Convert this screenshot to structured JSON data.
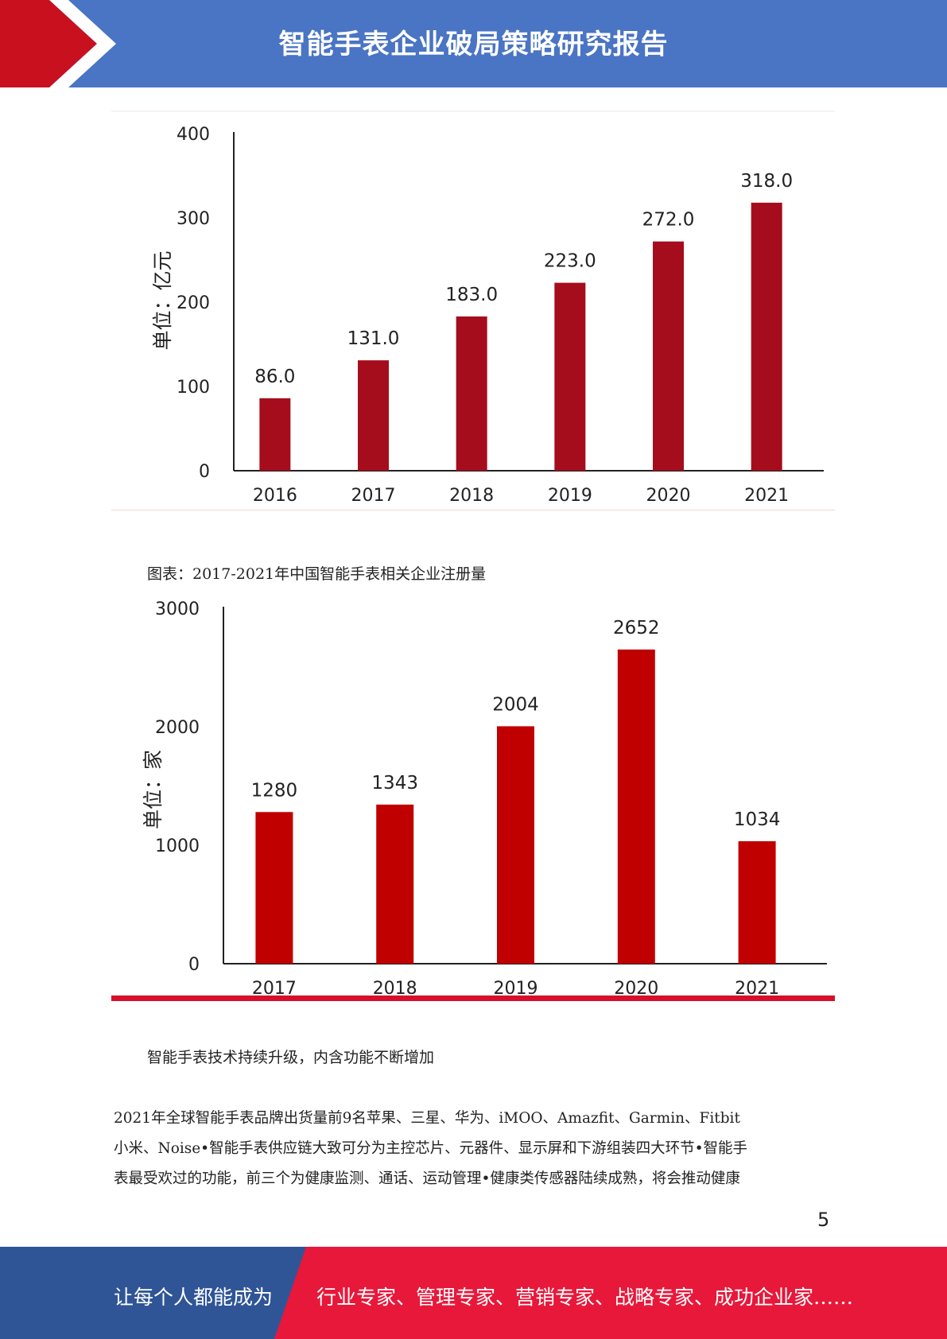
{
  "header": {
    "title": "智能手表企业破局策略研究报告",
    "colors": {
      "band": "#4a74c4",
      "accent": "#c8101e"
    }
  },
  "chart_data": [
    {
      "type": "bar",
      "categories": [
        "2016",
        "2017",
        "2018",
        "2019",
        "2020",
        "2021"
      ],
      "values": [
        86.0,
        131.0,
        183.0,
        223.0,
        272.0,
        318.0
      ],
      "data_labels": [
        "86.0",
        "131.0",
        "183.0",
        "223.0",
        "272.0",
        "318.0"
      ],
      "title": "",
      "xlabel": "",
      "ylabel": "单位：亿元",
      "ylim": [
        0,
        400
      ],
      "yticks": [
        "0",
        "100",
        "200",
        "300",
        "400"
      ],
      "grid": false,
      "color": "#a50d1c"
    },
    {
      "type": "bar",
      "categories": [
        "2017",
        "2018",
        "2019",
        "2020",
        "2021"
      ],
      "values": [
        1280,
        1343,
        2004,
        2652,
        1034
      ],
      "data_labels": [
        "1280",
        "1343",
        "2004",
        "2652",
        "1034"
      ],
      "title": "",
      "xlabel": "",
      "ylabel": "单位：家",
      "ylim": [
        0,
        3000
      ],
      "yticks": [
        "0",
        "1000",
        "2000",
        "3000"
      ],
      "grid": false,
      "color": "#c00000"
    }
  ],
  "body": {
    "caption": "图表：2017-2021年中国智能手表相关企业注册量",
    "subheading": "智能手表技术持续升级，内含功能不断增加",
    "paragraph_lines": [
      "2021年全球智能手表品牌出货量前9名苹果、三星、华为、iMOO、Amazfit、Garmin、Fitbit",
      "小米、Noise•智能手表供应链大致可分为主控芯片、元器件、显示屏和下游组装四大环节•智能手",
      "表最受欢过的功能，前三个为健康监测、通话、运动管理•健康类传感器陆续成熟，将会推动健康"
    ],
    "page_number": "5"
  },
  "footer": {
    "left_text": "让每个人都能成为",
    "right_text": "行业专家、管理专家、营销专家、战略专家、成功企业家……",
    "colors": {
      "left": "#2f5597",
      "right": "#e8183a"
    }
  }
}
